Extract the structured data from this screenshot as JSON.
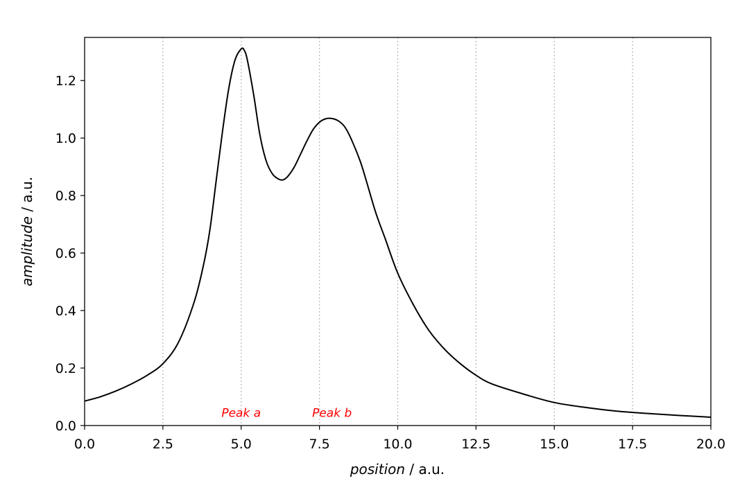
{
  "chart_data": {
    "type": "line",
    "title": "",
    "xlabel": {
      "italic": "position",
      "rest": " / a.u."
    },
    "ylabel": {
      "italic": "amplitude",
      "rest": " / a.u."
    },
    "xlim": [
      0,
      20
    ],
    "ylim": [
      0,
      1.35
    ],
    "x_ticks": [
      0,
      2.5,
      5,
      7.5,
      10,
      12.5,
      15,
      17.5,
      20
    ],
    "x_tick_labels": [
      "0.0",
      "2.5",
      "5.0",
      "7.5",
      "10.0",
      "12.5",
      "15.0",
      "17.5",
      "20.0"
    ],
    "y_ticks": [
      0,
      0.2,
      0.4,
      0.6,
      0.8,
      1.0,
      1.2
    ],
    "y_tick_labels": [
      "0.0",
      "0.2",
      "0.4",
      "0.6",
      "0.8",
      "1.0",
      "1.2"
    ],
    "grid": {
      "x": true,
      "y": false,
      "style": "dotted"
    },
    "line_color": "#000000",
    "grid_color": "#bbbbbb",
    "annotations": [
      {
        "text": "Peak a",
        "x": 5.0,
        "y": 0.045,
        "color": "#ff0000"
      },
      {
        "text": "Peak b",
        "x": 7.9,
        "y": 0.045,
        "color": "#ff0000"
      }
    ],
    "series": [
      {
        "x": [
          0,
          0.5,
          1.0,
          1.5,
          2.0,
          2.5,
          3.0,
          3.5,
          3.8,
          4.0,
          4.2,
          4.4,
          4.6,
          4.8,
          5.0,
          5.1,
          5.2,
          5.4,
          5.6,
          5.8,
          6.0,
          6.2,
          6.35,
          6.5,
          6.7,
          6.9,
          7.1,
          7.3,
          7.5,
          7.7,
          7.9,
          8.1,
          8.3,
          8.5,
          8.8,
          9.0,
          9.3,
          9.6,
          10.0,
          10.5,
          11.0,
          11.5,
          12.0,
          12.5,
          13.0,
          14.0,
          15.0,
          16.0,
          17.0,
          18.0,
          19.0,
          20.0
        ],
        "y": [
          0.085,
          0.1,
          0.12,
          0.145,
          0.175,
          0.215,
          0.29,
          0.43,
          0.56,
          0.68,
          0.85,
          1.02,
          1.17,
          1.27,
          1.31,
          1.305,
          1.27,
          1.15,
          1.01,
          0.92,
          0.875,
          0.857,
          0.855,
          0.868,
          0.9,
          0.945,
          0.99,
          1.03,
          1.055,
          1.067,
          1.068,
          1.06,
          1.04,
          1.0,
          0.92,
          0.85,
          0.74,
          0.65,
          0.53,
          0.42,
          0.33,
          0.265,
          0.215,
          0.175,
          0.145,
          0.11,
          0.08,
          0.063,
          0.05,
          0.042,
          0.035,
          0.029
        ]
      }
    ]
  }
}
